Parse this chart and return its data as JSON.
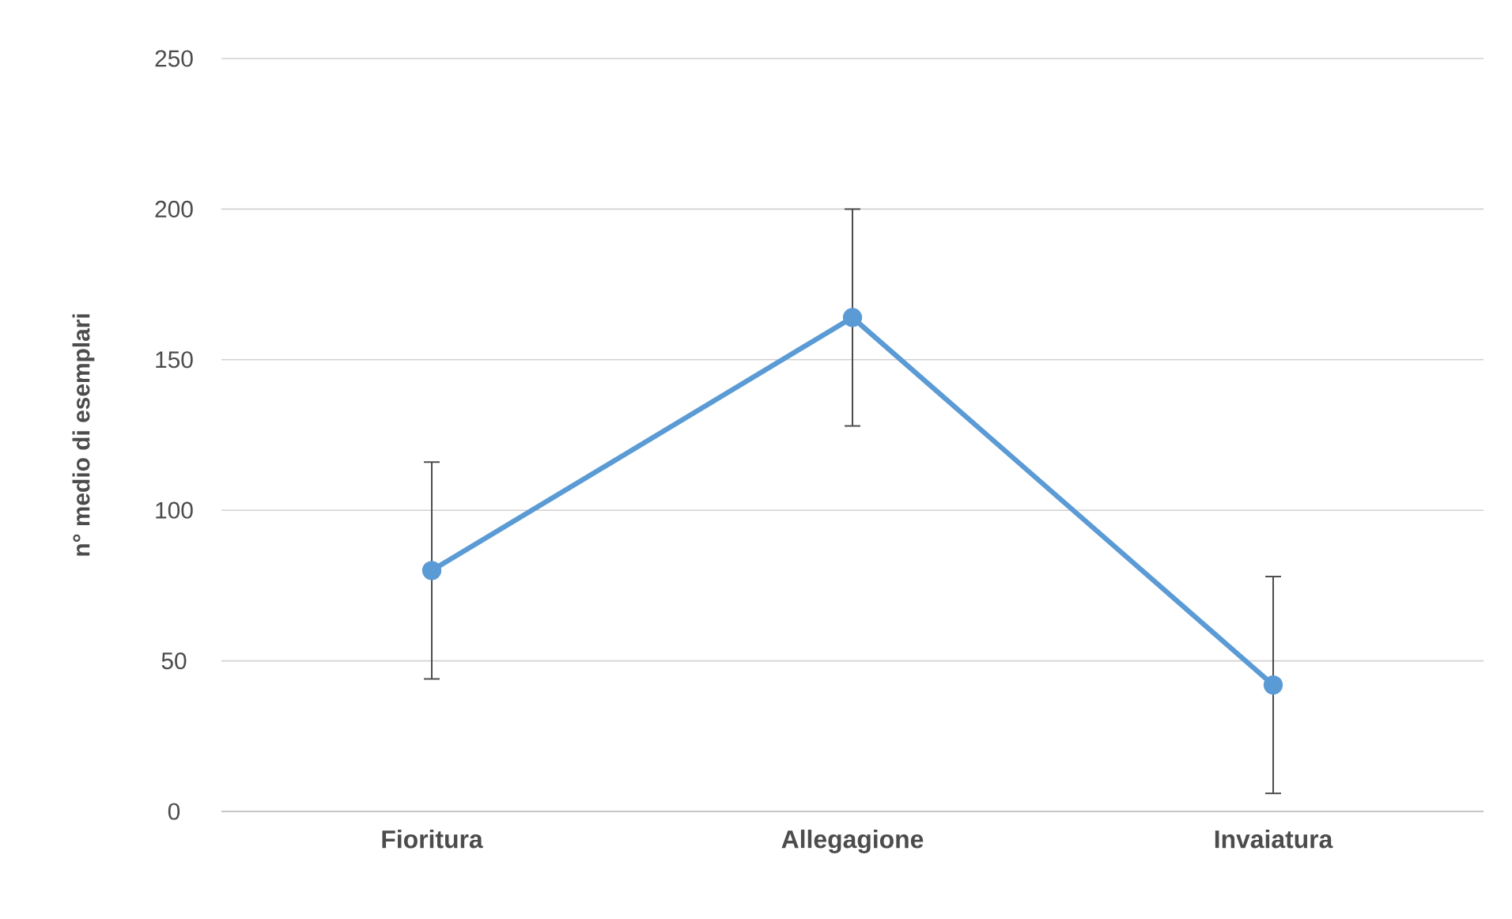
{
  "chart_data": {
    "type": "line",
    "ylabel": "n° medio di esemplari",
    "categories": [
      "Fioritura",
      "Allegagione",
      "Invaiatura"
    ],
    "values": [
      80,
      164,
      42
    ],
    "errors": [
      36,
      36,
      36
    ],
    "color": "#5b9bd5",
    "marker": "circle",
    "ylim": [
      0,
      250
    ],
    "yticks": [
      0,
      50,
      100,
      150,
      200,
      250
    ],
    "grid": "y"
  }
}
